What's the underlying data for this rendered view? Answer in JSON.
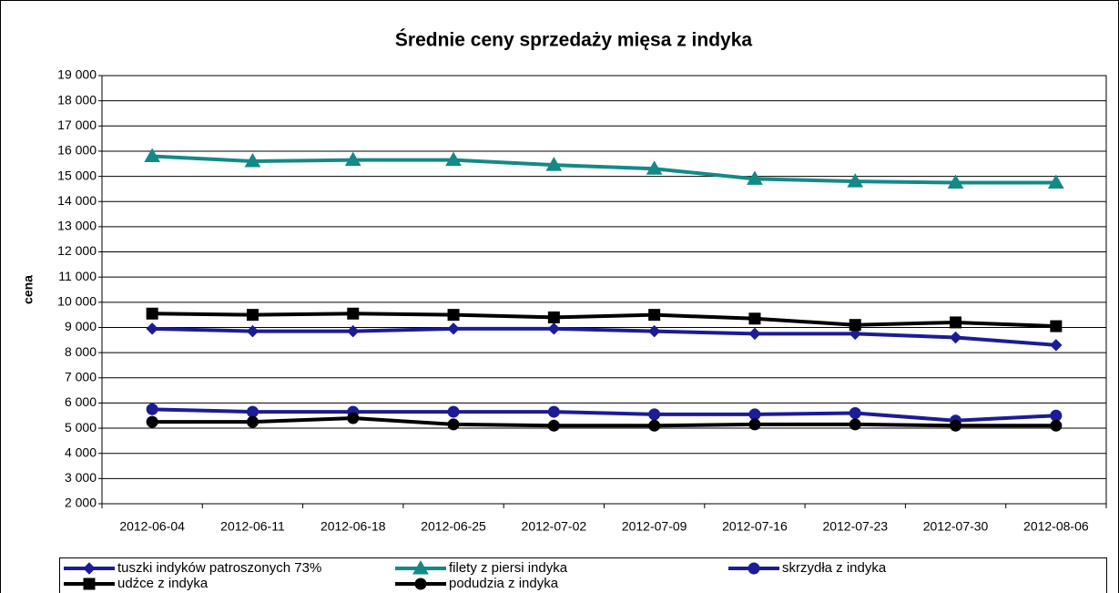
{
  "chart_data": {
    "type": "line",
    "title": "Średnie ceny sprzedaży mięsa z indyka",
    "y_label": "cena",
    "categories": [
      "2012-06-04",
      "2012-06-11",
      "2012-06-18",
      "2012-06-25",
      "2012-07-02",
      "2012-07-09",
      "2012-07-16",
      "2012-07-23",
      "2012-07-30",
      "2012-08-06"
    ],
    "series": [
      {
        "name": "tuszki indyków  patroszonych 73%",
        "color": "#1c1c96",
        "marker": "diamond",
        "values": [
          8950,
          8850,
          8850,
          8950,
          8950,
          8850,
          8750,
          8750,
          8600,
          8300
        ]
      },
      {
        "name": "filety z piersi indyka",
        "color": "#138a87",
        "marker": "triangle",
        "values": [
          15800,
          15600,
          15650,
          15650,
          15450,
          15300,
          14900,
          14800,
          14750,
          14750
        ]
      },
      {
        "name": "skrzydła z indyka",
        "color": "#1c1c96",
        "marker": "circle",
        "values": [
          5750,
          5650,
          5650,
          5650,
          5650,
          5550,
          5550,
          5600,
          5300,
          5500
        ]
      },
      {
        "name": "udźce z indyka",
        "color": "#000000",
        "marker": "square",
        "values": [
          9550,
          9500,
          9550,
          9500,
          9400,
          9500,
          9350,
          9100,
          9200,
          9050
        ]
      },
      {
        "name": "podudzia z indyka",
        "color": "#000000",
        "marker": "circle",
        "values": [
          5250,
          5250,
          5400,
          5150,
          5100,
          5100,
          5150,
          5150,
          5100,
          5100
        ]
      }
    ],
    "ylim": [
      2000,
      19000
    ],
    "yticks": [
      {
        "value": 2000,
        "label": "2 000"
      },
      {
        "value": 3000,
        "label": "3 000"
      },
      {
        "value": 4000,
        "label": "4 000"
      },
      {
        "value": 5000,
        "label": "5 000"
      },
      {
        "value": 6000,
        "label": "6 000"
      },
      {
        "value": 7000,
        "label": "7 000"
      },
      {
        "value": 8000,
        "label": "8 000"
      },
      {
        "value": 9000,
        "label": "9 000"
      },
      {
        "value": 10000,
        "label": "10 000"
      },
      {
        "value": 11000,
        "label": "11 000"
      },
      {
        "value": 12000,
        "label": "12 000"
      },
      {
        "value": 13000,
        "label": "13 000"
      },
      {
        "value": 14000,
        "label": "14 000"
      },
      {
        "value": 15000,
        "label": "15 000"
      },
      {
        "value": 16000,
        "label": "16 000"
      },
      {
        "value": 17000,
        "label": "17 000"
      },
      {
        "value": 18000,
        "label": "18 000"
      },
      {
        "value": 19000,
        "label": "19 000"
      }
    ],
    "grid": true
  }
}
